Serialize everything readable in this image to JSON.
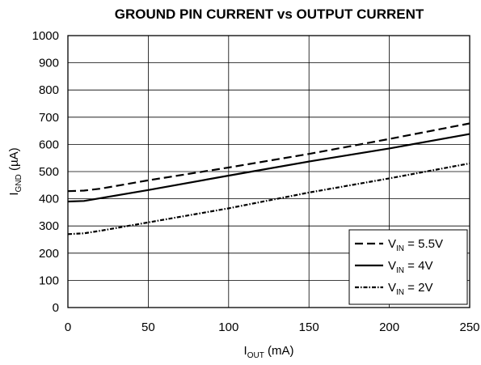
{
  "chart_data": {
    "type": "line",
    "title": "GROUND PIN CURRENT vs OUTPUT CURRENT",
    "xlabel": {
      "main": "I",
      "sub": "OUT",
      "unit": " (mA)"
    },
    "ylabel": {
      "main": "I",
      "sub": "GND",
      "unit": " (µA)"
    },
    "xlim": [
      0,
      250
    ],
    "ylim": [
      0,
      1000
    ],
    "x_ticks": [
      0,
      50,
      100,
      150,
      200,
      250
    ],
    "y_ticks": [
      0,
      100,
      200,
      300,
      400,
      500,
      600,
      700,
      800,
      900,
      1000
    ],
    "x_tick_labels": [
      "0",
      "50",
      "100",
      "150",
      "200",
      "250"
    ],
    "y_tick_labels": [
      "0",
      "100",
      "200",
      "300",
      "400",
      "500",
      "600",
      "700",
      "800",
      "900",
      "1000"
    ],
    "grid": true,
    "legend_position": "bottom-right",
    "series": [
      {
        "name": {
          "main": "V",
          "sub": "IN",
          "suffix": " = 5.5V"
        },
        "style": "dashed",
        "x": [
          0,
          10,
          20,
          50,
          100,
          150,
          200,
          250
        ],
        "y": [
          428,
          430,
          437,
          468,
          515,
          565,
          620,
          677
        ]
      },
      {
        "name": {
          "main": "V",
          "sub": "IN",
          "suffix": " = 4V"
        },
        "style": "solid",
        "x": [
          0,
          10,
          20,
          50,
          100,
          150,
          200,
          250
        ],
        "y": [
          390,
          392,
          402,
          432,
          485,
          537,
          585,
          638
        ]
      },
      {
        "name": {
          "main": "V",
          "sub": "IN",
          "suffix": " = 2V"
        },
        "style": "dotdash",
        "x": [
          0,
          10,
          20,
          50,
          100,
          150,
          200,
          250
        ],
        "y": [
          270,
          273,
          282,
          313,
          365,
          423,
          475,
          530
        ]
      }
    ]
  }
}
